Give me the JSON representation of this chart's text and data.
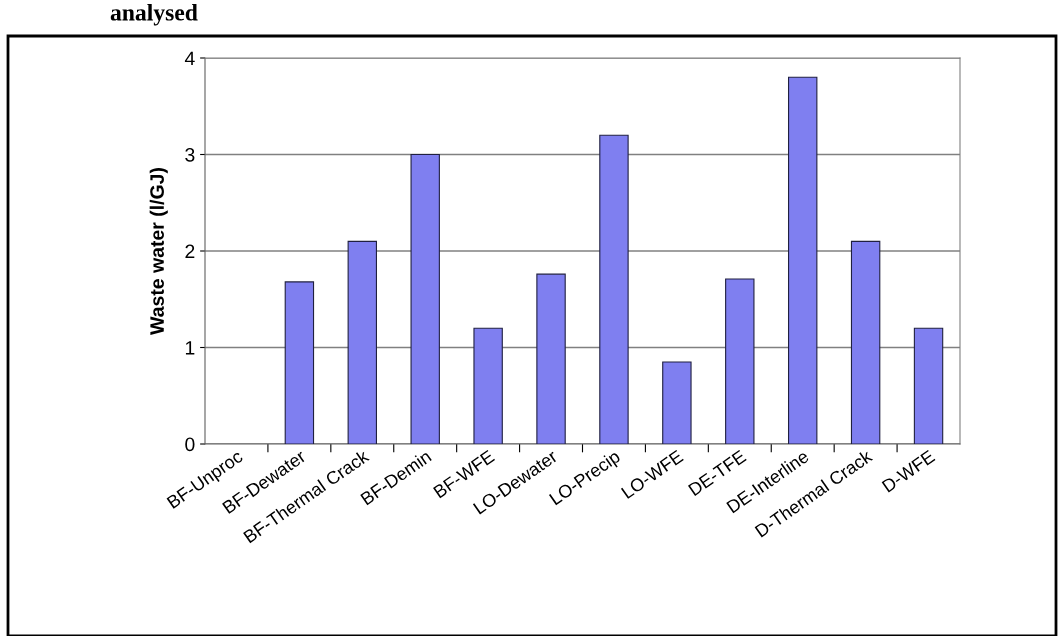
{
  "chart_data": {
    "type": "bar",
    "ylabel": "Waste water (l/GJ)",
    "annotations": [
      "analysed"
    ],
    "categories": [
      "BF-Unproc",
      "BF-Dewater",
      "BF-Thermal Crack",
      "BF-Demin",
      "BF-WFE",
      "LO-Dewater",
      "LO-Precip",
      "LO-WFE",
      "DE-TFE",
      "DE-Interline",
      "D-Thermal Crack",
      "D-WFE"
    ],
    "values": [
      0,
      1.68,
      2.1,
      3.0,
      1.2,
      1.76,
      3.2,
      0.85,
      1.71,
      3.8,
      2.1,
      1.2
    ],
    "color": "#7f7ff0",
    "ylim": [
      0,
      4
    ],
    "yticks": [
      0,
      1,
      2,
      3,
      4
    ],
    "grid": "y",
    "legend": false
  }
}
